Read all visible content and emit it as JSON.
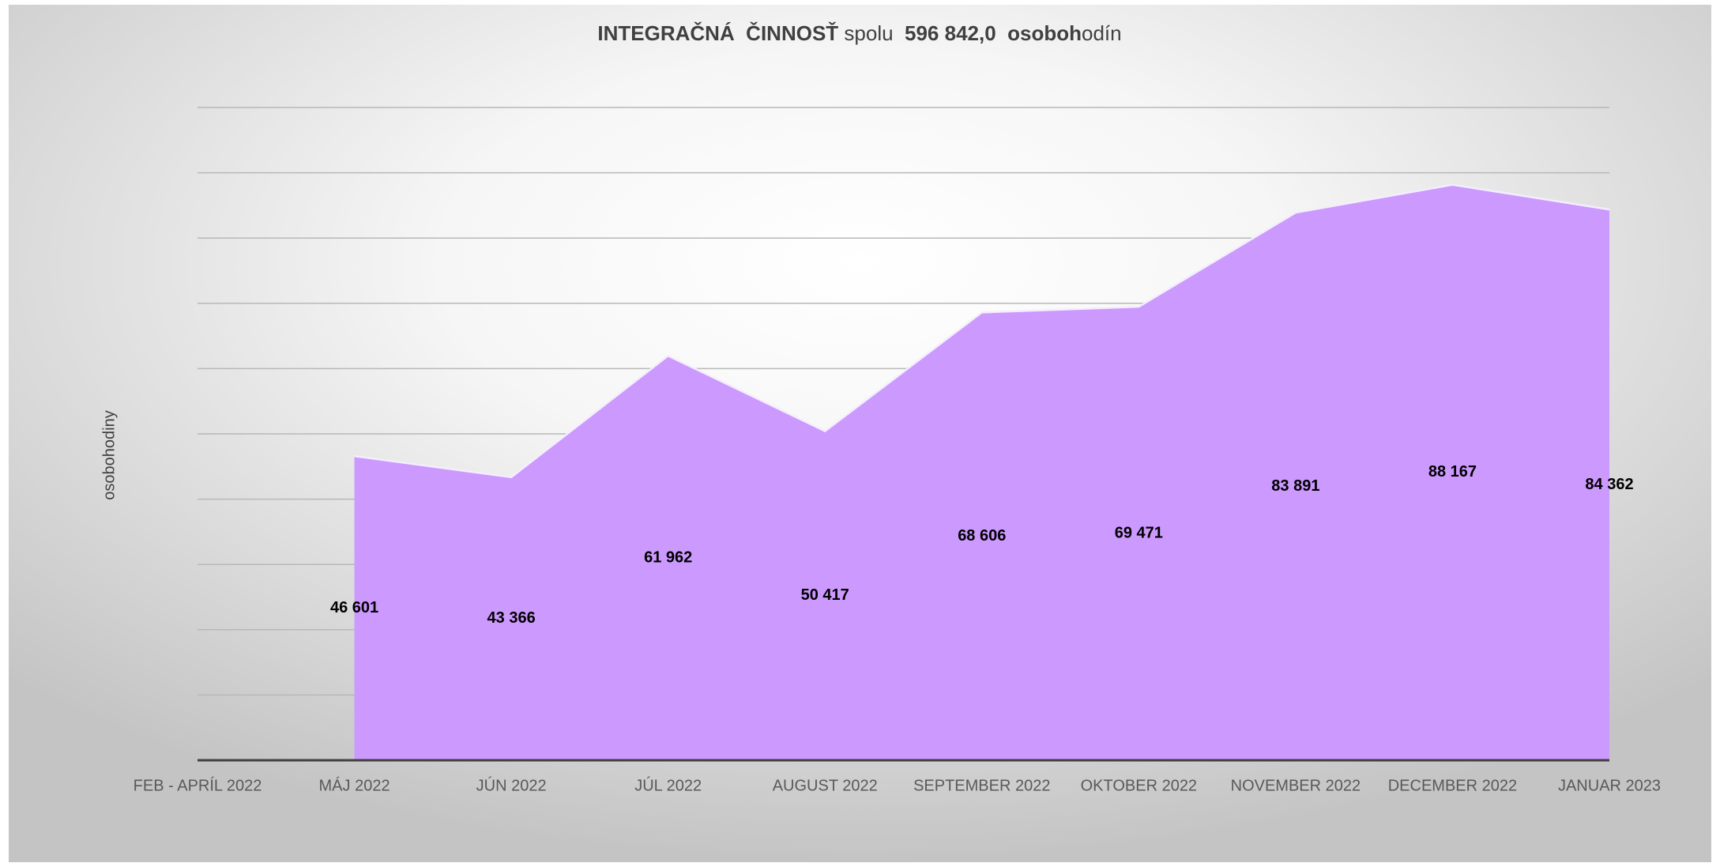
{
  "chart_data": {
    "type": "area",
    "title": [
      "INTEGRAČNÁ  ČINNOSŤ",
      " spolu ",
      " 596 842,0",
      "  osoboh",
      "odín"
    ],
    "title_bold": [
      true,
      false,
      true,
      true,
      false
    ],
    "y_label": "osobohodiny",
    "categories": [
      "FEB - APRÍL 2022",
      "MÁJ 2022",
      "JÚN 2022",
      "JÚL 2022",
      "AUGUST 2022",
      "SEPTEMBER 2022",
      "OKTOBER 2022",
      "NOVEMBER 2022",
      "DECEMBER 2022",
      "JANUAR 2023"
    ],
    "values": [
      null,
      46601,
      43366,
      61962,
      50417,
      68606,
      69471,
      83891,
      88167,
      84362
    ],
    "value_labels": [
      null,
      "46 601",
      "43 366",
      "61 962",
      "50 417",
      "68 606",
      "69 471",
      "83 891",
      "88 167",
      "84 362"
    ],
    "color": "#cc99ff",
    "ylim": [
      0,
      100000
    ],
    "yticks": [
      0,
      10000,
      20000,
      30000,
      40000,
      50000,
      60000,
      70000,
      80000,
      90000,
      100000
    ],
    "grid": true,
    "show_tick_labels": false
  }
}
